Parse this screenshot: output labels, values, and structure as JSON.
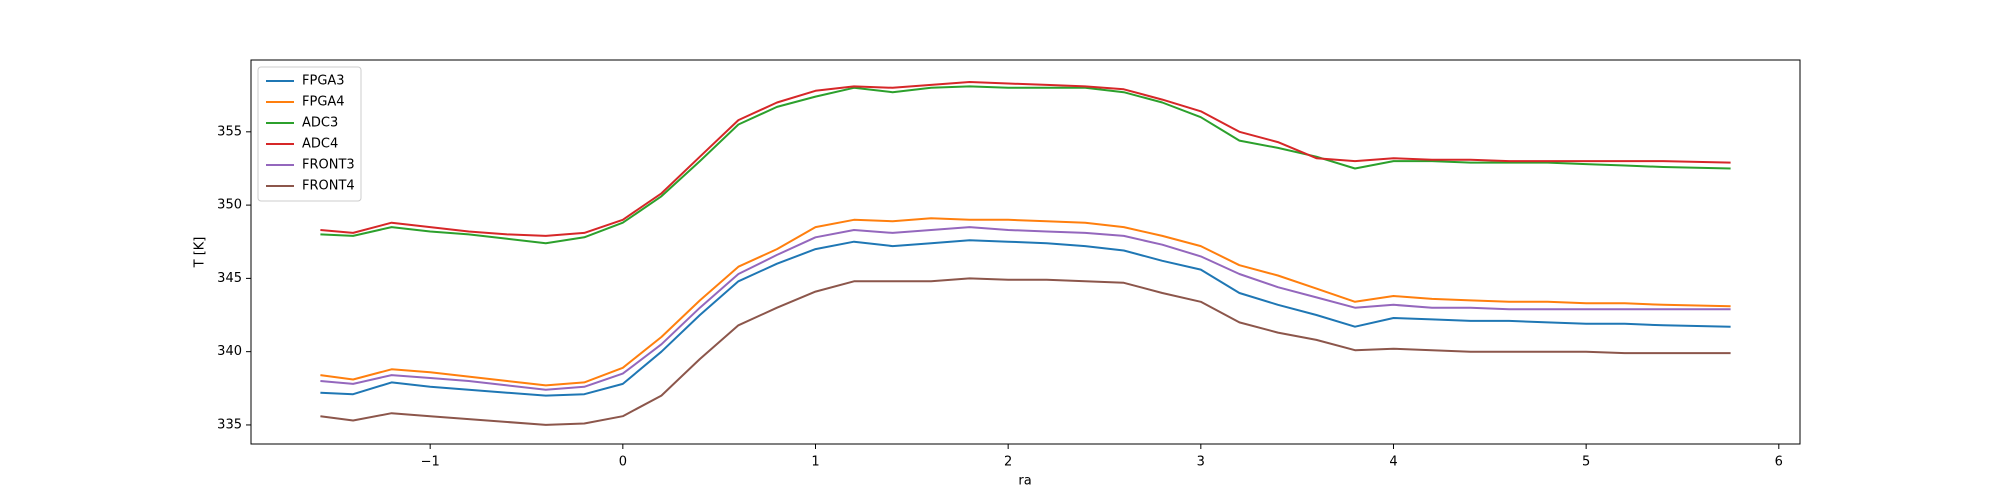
{
  "chart_data": {
    "type": "line",
    "xlabel": "ra",
    "ylabel": "T [K]",
    "x": [
      -1.57,
      -1.4,
      -1.2,
      -1.0,
      -0.8,
      -0.6,
      -0.4,
      -0.2,
      0,
      0.2,
      0.4,
      0.6,
      0.8,
      1.0,
      1.2,
      1.4,
      1.6,
      1.8,
      2.0,
      2.2,
      2.4,
      2.6,
      2.8,
      3.0,
      3.2,
      3.4,
      3.6,
      3.8,
      4.0,
      4.2,
      4.4,
      4.6,
      4.8,
      5.0,
      5.2,
      5.4,
      5.75
    ],
    "series": [
      {
        "name": "FPGA3",
        "color": "#1f77b4",
        "values": [
          337.2,
          337.1,
          337.9,
          337.6,
          337.4,
          337.2,
          337.0,
          337.1,
          337.8,
          340.0,
          342.5,
          344.8,
          346.0,
          347.0,
          347.5,
          347.2,
          347.4,
          347.6,
          347.5,
          347.4,
          347.2,
          346.9,
          346.2,
          345.6,
          344.0,
          343.2,
          342.5,
          341.7,
          342.3,
          342.2,
          342.1,
          342.1,
          342.0,
          341.9,
          341.9,
          341.8,
          341.7
        ]
      },
      {
        "name": "FPGA4",
        "color": "#ff7f0e",
        "values": [
          338.4,
          338.1,
          338.8,
          338.6,
          338.3,
          338.0,
          337.7,
          337.9,
          338.9,
          341.0,
          343.5,
          345.8,
          347.0,
          348.5,
          349.0,
          348.9,
          349.1,
          349.0,
          349.0,
          348.9,
          348.8,
          348.5,
          347.9,
          347.2,
          345.9,
          345.2,
          344.3,
          343.4,
          343.8,
          343.6,
          343.5,
          343.4,
          343.4,
          343.3,
          343.3,
          343.2,
          343.1
        ]
      },
      {
        "name": "ADC3",
        "color": "#2ca02c",
        "values": [
          348.0,
          347.9,
          348.5,
          348.2,
          348.0,
          347.7,
          347.4,
          347.8,
          348.8,
          350.6,
          353.0,
          355.5,
          356.7,
          357.4,
          358.0,
          357.7,
          358.0,
          358.1,
          358.0,
          358.0,
          358.0,
          357.7,
          357.0,
          356.0,
          354.4,
          353.9,
          353.3,
          352.5,
          353.0,
          353.0,
          352.9,
          352.9,
          352.9,
          352.8,
          352.7,
          352.6,
          352.5
        ]
      },
      {
        "name": "ADC4",
        "color": "#d62728",
        "values": [
          348.3,
          348.1,
          348.8,
          348.5,
          348.2,
          348.0,
          347.9,
          348.1,
          349.0,
          350.8,
          353.3,
          355.8,
          357.0,
          357.8,
          358.1,
          358.0,
          358.2,
          358.4,
          358.3,
          358.2,
          358.1,
          357.9,
          357.2,
          356.4,
          355.0,
          354.3,
          353.2,
          353.0,
          353.2,
          353.1,
          353.1,
          353.0,
          353.0,
          353.0,
          353.0,
          353.0,
          352.9
        ]
      },
      {
        "name": "FRONT3",
        "color": "#9467bd",
        "values": [
          338.0,
          337.8,
          338.4,
          338.2,
          338.0,
          337.7,
          337.4,
          337.6,
          338.5,
          340.5,
          343.0,
          345.3,
          346.6,
          347.8,
          348.3,
          348.1,
          348.3,
          348.5,
          348.3,
          348.2,
          348.1,
          347.9,
          347.3,
          346.5,
          345.3,
          344.4,
          343.7,
          343.0,
          343.2,
          343.0,
          343.0,
          342.9,
          342.9,
          342.9,
          342.9,
          342.9,
          342.9
        ]
      },
      {
        "name": "FRONT4",
        "color": "#8c564b",
        "values": [
          335.6,
          335.3,
          335.8,
          335.6,
          335.4,
          335.2,
          335.0,
          335.1,
          335.6,
          337.0,
          339.5,
          341.8,
          343.0,
          344.1,
          344.8,
          344.8,
          344.8,
          345.0,
          344.9,
          344.9,
          344.8,
          344.7,
          344.0,
          343.4,
          342.0,
          341.3,
          340.8,
          340.1,
          340.2,
          340.1,
          340.0,
          340.0,
          340.0,
          340.0,
          339.9,
          339.9,
          339.9
        ]
      }
    ],
    "xlim": [
      -1.93,
      6.11
    ],
    "ylim": [
      333.7,
      359.9
    ],
    "xticks": [
      {
        "value": -1,
        "label": "−1"
      },
      0,
      1,
      2,
      3,
      4,
      5,
      6
    ],
    "yticks": [
      335,
      340,
      345,
      350,
      355
    ],
    "legend": "upper left"
  }
}
